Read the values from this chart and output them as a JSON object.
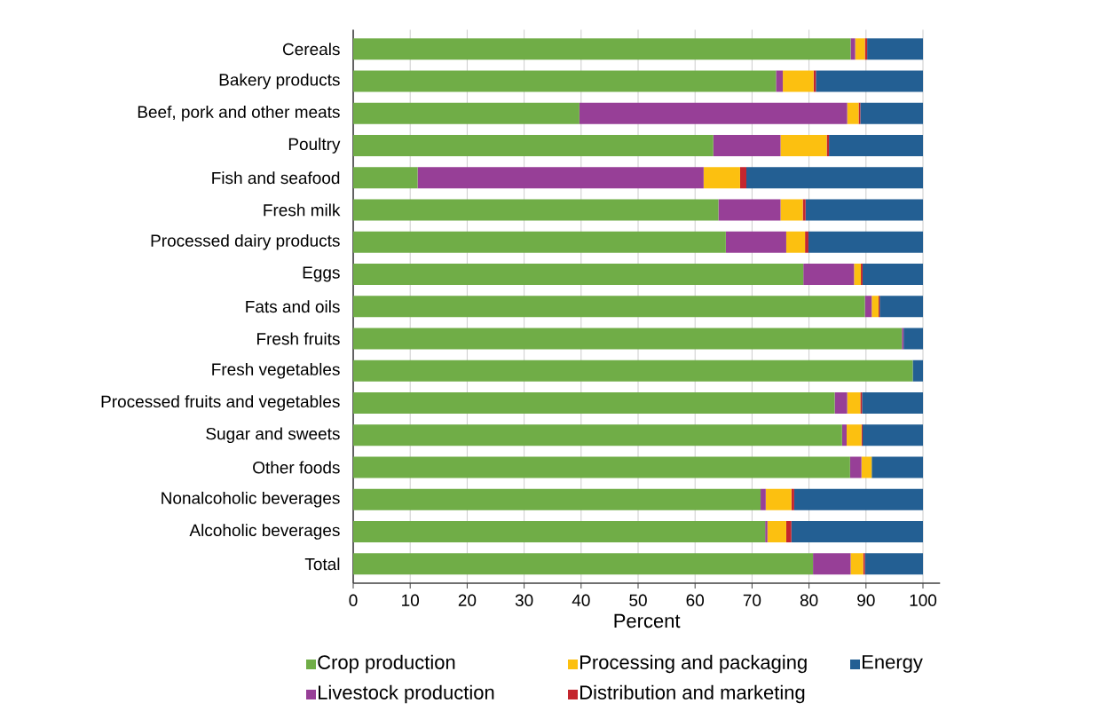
{
  "chart_data": {
    "type": "bar",
    "orientation": "horizontal",
    "stacked": true,
    "categories": [
      "Cereals",
      "Bakery products",
      "Beef, pork and other meats",
      "Poultry",
      "Fish and seafood",
      "Fresh milk",
      "Processed dairy products",
      "Eggs",
      "Fats and oils",
      "Fresh fruits",
      "Fresh vegetables",
      "Processed fruits and vegetables",
      "Sugar and sweets",
      "Other foods",
      "Nonalcoholic beverages",
      "Alcoholic beverages",
      "Total"
    ],
    "series": [
      {
        "name": "Crop production",
        "color": "#70ad47",
        "values": [
          87.3,
          74.2,
          39.7,
          63.2,
          11.3,
          64.1,
          65.4,
          79.0,
          89.8,
          96.3,
          98.2,
          84.5,
          85.8,
          87.2,
          71.5,
          72.3,
          80.7
        ]
      },
      {
        "name": "Livestock production",
        "color": "#973f97",
        "values": [
          0.8,
          1.2,
          47.0,
          11.8,
          50.2,
          10.9,
          10.6,
          8.9,
          1.2,
          0.3,
          null,
          2.2,
          0.8,
          2.0,
          0.9,
          0.4,
          6.6
        ]
      },
      {
        "name": "Processing and packaging",
        "color": "#fcc010",
        "values": [
          1.7,
          5.4,
          2.0,
          8.1,
          6.4,
          3.9,
          3.3,
          1.2,
          1.2,
          0,
          0,
          2.3,
          2.6,
          1.8,
          4.5,
          3.3,
          2.2
        ]
      },
      {
        "name": "Distribution and marketing",
        "color": "#c4262e",
        "values": [
          0.4,
          0.4,
          0.3,
          0.4,
          1.1,
          0.5,
          0.6,
          0.3,
          0.2,
          0,
          0,
          0.3,
          0.2,
          null,
          0.5,
          0.9,
          0.3
        ]
      },
      {
        "name": "Energy",
        "color": "#235f93",
        "values": [
          9.8,
          18.8,
          11.0,
          16.5,
          31.0,
          20.6,
          20.1,
          10.6,
          7.6,
          3.4,
          1.8,
          10.7,
          10.6,
          9.0,
          22.6,
          23.1,
          10.2
        ]
      }
    ],
    "xlabel": "Percent",
    "xlim": [
      0,
      103
    ],
    "xticks": [
      0,
      10,
      20,
      30,
      40,
      50,
      60,
      70,
      80,
      90,
      100
    ],
    "grid": "x",
    "legend": "bottom"
  }
}
